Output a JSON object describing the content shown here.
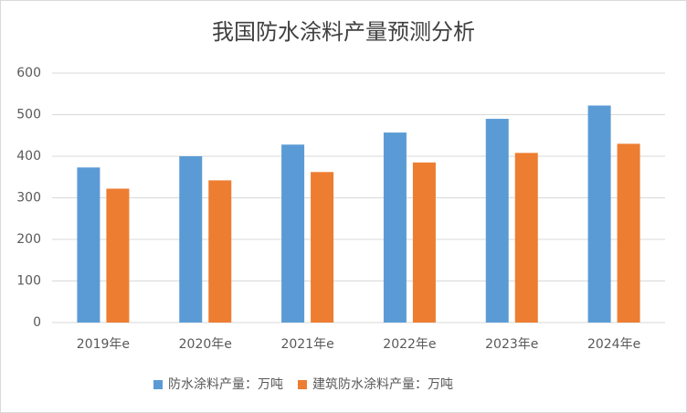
{
  "chart_data": {
    "type": "bar",
    "title": "我国防水涂料产量预测分析",
    "categories": [
      "2019年e",
      "2020年e",
      "2021年e",
      "2022年e",
      "2023年e",
      "2024年e"
    ],
    "series": [
      {
        "name": "防水涂料产量：万吨",
        "color": "#5b9bd5",
        "values": [
          373,
          400,
          428,
          457,
          490,
          522
        ]
      },
      {
        "name": "建筑防水涂料产量：万吨",
        "color": "#ed7d31",
        "values": [
          322,
          342,
          362,
          385,
          408,
          430
        ]
      }
    ],
    "ylim": [
      0,
      600
    ],
    "yticks": [
      0,
      100,
      200,
      300,
      400,
      500,
      600
    ],
    "grid": true,
    "legend": "bottom"
  }
}
